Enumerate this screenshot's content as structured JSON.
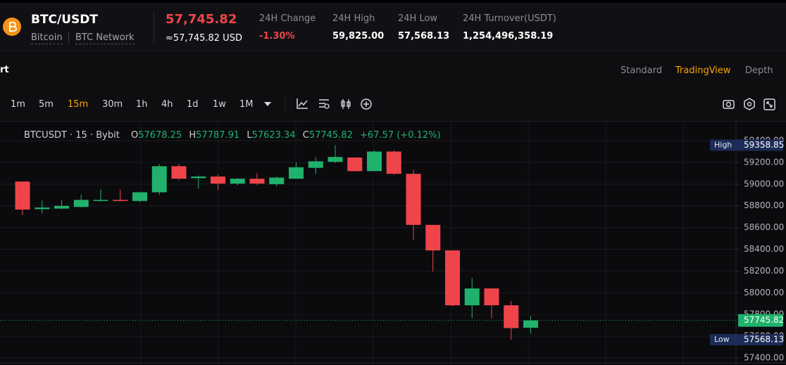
{
  "header": {
    "pair": "BTC/USDT",
    "coin": "Bitcoin",
    "network": "BTC Network",
    "price": "57,745.82",
    "price_usd": "≈57,745.82 USD",
    "stats": [
      {
        "label": "24H Change",
        "value": "-1.30%"
      },
      {
        "label": "24H High",
        "value": "59,825.00"
      },
      {
        "label": "24H Low",
        "value": "57,568.13"
      },
      {
        "label": "24H Turnover(USDT)",
        "value": "1,254,496,358.19"
      }
    ]
  },
  "nav": {
    "chart_tab": "rt",
    "views": [
      "Standard",
      "TradingView",
      "Depth"
    ],
    "active_view": 1
  },
  "toolbar": {
    "intervals": [
      "1m",
      "5m",
      "15m",
      "30m",
      "1h",
      "4h",
      "1d",
      "1w",
      "1M"
    ],
    "active_interval": 2
  },
  "chart_data": {
    "type": "candlestick",
    "symbol": "BTCUSDT · 15 · Bybit",
    "ohlc_legend": [
      {
        "key": "O",
        "value": "57678.25"
      },
      {
        "key": "H",
        "value": "57787.91"
      },
      {
        "key": "L",
        "value": "57623.34"
      },
      {
        "key": "C",
        "value": "57745.82"
      }
    ],
    "change": "+67.57 (+0.12%)",
    "open": [
      59024,
      58770,
      58775,
      58790,
      58845,
      58855,
      58845,
      58925,
      59165,
      59055,
      59070,
      59005,
      59050,
      59000,
      59050,
      59150,
      59205,
      59245,
      59120,
      59300,
      59095,
      58625,
      58390,
      57885,
      58040,
      57885,
      57678.25
    ],
    "high": [
      59024,
      58850,
      58850,
      58905,
      58950,
      58950,
      58930,
      59185,
      59185,
      59080,
      59090,
      59055,
      59100,
      59070,
      59200,
      59250,
      59358.85,
      59250,
      59310,
      59310,
      59135,
      58625,
      58390,
      58135,
      58040,
      57925,
      57787.91
    ],
    "low": [
      58714,
      58730,
      58770,
      58785,
      58840,
      58845,
      58835,
      58900,
      59040,
      58960,
      58945,
      58990,
      58990,
      58980,
      59050,
      59095,
      59195,
      59115,
      59120,
      59085,
      58490,
      58195,
      57875,
      57765,
      57765,
      57568.13,
      57623.34
    ],
    "close": [
      58766,
      58785,
      58800,
      58855,
      58855,
      58845,
      58925,
      59165,
      59050,
      59070,
      59005,
      59050,
      59005,
      59060,
      59155,
      59210,
      59250,
      59120,
      59300,
      59095,
      58625,
      58390,
      57885,
      58040,
      57885,
      57675,
      57745.82
    ],
    "up_color": "#20b26c",
    "down_color": "#ef454a",
    "ylim": [
      57329,
      59575
    ],
    "yticks": [
      {
        "value": 57400,
        "label": "57400.00"
      },
      {
        "value": 57600,
        "label": "57600.00"
      },
      {
        "value": 57800,
        "label": "57800.00"
      },
      {
        "value": 58000,
        "label": "58000.00"
      },
      {
        "value": 58200,
        "label": "58200.00"
      },
      {
        "value": 58400,
        "label": "58400.00"
      },
      {
        "value": 58600,
        "label": "58600.00"
      },
      {
        "value": 58800,
        "label": "58800.00"
      },
      {
        "value": 59000,
        "label": "59000.00"
      },
      {
        "value": 59200,
        "label": "59200.00"
      },
      {
        "value": 59400,
        "label": "59400.00"
      }
    ],
    "grid": true,
    "last_price": 57745.82,
    "price_tags": [
      {
        "label": "High",
        "value": 59358.85
      },
      {
        "value": 57745.82
      },
      {
        "label": "Low",
        "value": 57568.13
      }
    ]
  }
}
